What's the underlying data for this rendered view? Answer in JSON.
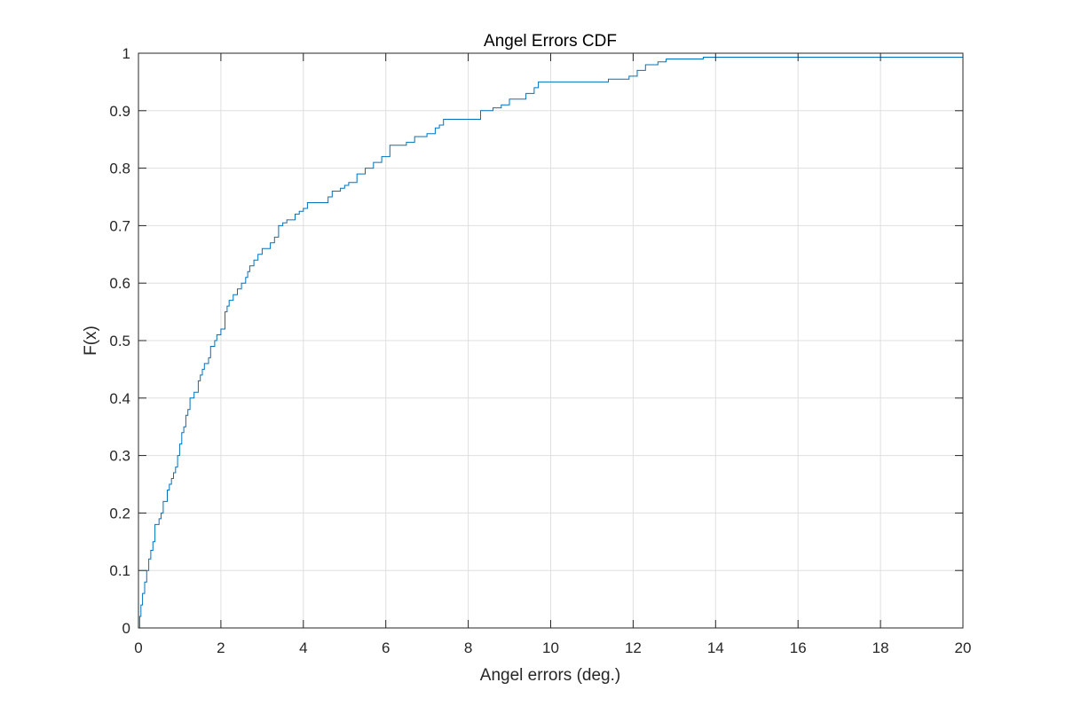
{
  "chart_data": {
    "type": "line",
    "step": true,
    "title": "Angel Errors CDF",
    "xlabel": "Angel errors (deg.)",
    "ylabel": "F(x)",
    "xlim": [
      0,
      20
    ],
    "ylim": [
      0,
      1
    ],
    "xticks": [
      0,
      2,
      4,
      6,
      8,
      10,
      12,
      14,
      16,
      18,
      20
    ],
    "yticks": [
      0,
      0.1,
      0.2,
      0.3,
      0.4,
      0.5,
      0.6,
      0.7,
      0.8,
      0.9,
      1
    ],
    "xtick_labels": [
      "0",
      "2",
      "4",
      "6",
      "8",
      "10",
      "12",
      "14",
      "16",
      "18",
      "20"
    ],
    "ytick_labels": [
      "0",
      "0.1",
      "0.2",
      "0.3",
      "0.4",
      "0.5",
      "0.6",
      "0.7",
      "0.8",
      "0.9",
      "1"
    ],
    "grid": true,
    "line_color": "#0072BD",
    "series": [
      {
        "x": [
          0,
          0.03,
          0.06,
          0.1,
          0.15,
          0.2,
          0.25,
          0.3,
          0.35,
          0.4,
          0.5,
          0.55,
          0.6,
          0.7,
          0.75,
          0.8,
          0.85,
          0.9,
          0.95,
          1.0,
          1.05,
          1.1,
          1.15,
          1.2,
          1.25,
          1.35,
          1.45,
          1.5,
          1.55,
          1.6,
          1.7,
          1.75,
          1.85,
          1.9,
          2.0,
          2.1,
          2.15,
          2.2,
          2.3,
          2.4,
          2.5,
          2.6,
          2.65,
          2.7,
          2.8,
          2.9,
          3.0,
          3.2,
          3.3,
          3.4,
          3.5,
          3.6,
          3.8,
          3.9,
          4.0,
          4.1,
          4.6,
          4.7,
          4.9,
          5.0,
          5.1,
          5.3,
          5.5,
          5.7,
          5.9,
          6.1,
          6.5,
          6.7,
          7.0,
          7.2,
          7.3,
          7.4,
          8.3,
          8.6,
          8.8,
          9.0,
          9.4,
          9.6,
          9.7,
          11.4,
          11.9,
          12.1,
          12.3,
          12.6,
          12.8,
          13.7,
          14.3,
          14.7,
          15.5,
          15.6,
          16.0,
          16.1,
          16.2,
          20
        ],
        "y": [
          0,
          0.02,
          0.04,
          0.06,
          0.08,
          0.1,
          0.12,
          0.135,
          0.15,
          0.18,
          0.19,
          0.2,
          0.22,
          0.24,
          0.25,
          0.26,
          0.27,
          0.28,
          0.3,
          0.32,
          0.34,
          0.35,
          0.37,
          0.38,
          0.4,
          0.41,
          0.43,
          0.44,
          0.45,
          0.46,
          0.47,
          0.49,
          0.5,
          0.51,
          0.52,
          0.55,
          0.56,
          0.57,
          0.58,
          0.59,
          0.6,
          0.61,
          0.62,
          0.63,
          0.64,
          0.65,
          0.66,
          0.67,
          0.68,
          0.7,
          0.705,
          0.71,
          0.72,
          0.725,
          0.73,
          0.74,
          0.75,
          0.76,
          0.765,
          0.77,
          0.775,
          0.79,
          0.8,
          0.81,
          0.82,
          0.84,
          0.845,
          0.855,
          0.86,
          0.87,
          0.875,
          0.885,
          0.9,
          0.905,
          0.91,
          0.92,
          0.93,
          0.94,
          0.95,
          0.955,
          0.96,
          0.97,
          0.98,
          0.985,
          0.99,
          0.993,
          0.993,
          0.993,
          0.993,
          0.993,
          0.993,
          0.993,
          0.993,
          0.993
        ],
        "note_ignore": ""
      }
    ]
  }
}
